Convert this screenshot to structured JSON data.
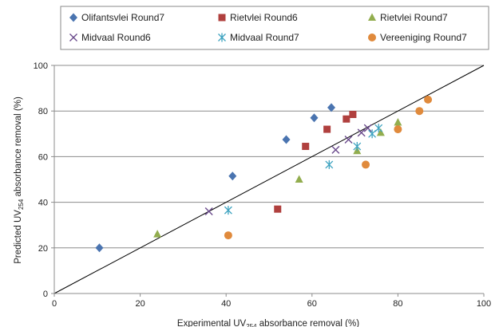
{
  "chart_data": {
    "type": "scatter",
    "title": "",
    "xlabel": {
      "prefix": "Experimental UV",
      "sub": "254",
      "suffix": " absorbance removal (%)"
    },
    "ylabel": {
      "prefix": "Predicted UV",
      "sub": "254",
      "suffix": " absorbance removal (%)"
    },
    "xlim": [
      0,
      100
    ],
    "ylim": [
      0,
      100
    ],
    "x_ticks": [
      "0",
      "20",
      "40",
      "60",
      "80",
      "100"
    ],
    "y_ticks": [
      "0",
      "20",
      "40",
      "60",
      "80",
      "100"
    ],
    "grid": "horizontal",
    "legend_position": "top",
    "reference_line": {
      "from": [
        0,
        0
      ],
      "to": [
        100,
        100
      ]
    },
    "series": [
      {
        "name": "Olifantsvlei Round7",
        "marker": "diamond",
        "color": "#4a74b0",
        "points": [
          [
            10.5,
            20
          ],
          [
            41.5,
            51.5
          ],
          [
            54,
            67.5
          ],
          [
            60.5,
            77
          ],
          [
            64.5,
            81.5
          ]
        ]
      },
      {
        "name": "Rietvlei Round6",
        "marker": "square",
        "color": "#b0403e",
        "points": [
          [
            52,
            37
          ],
          [
            58.5,
            64.5
          ],
          [
            63.5,
            72
          ],
          [
            68,
            76.5
          ],
          [
            69.5,
            78.5
          ]
        ]
      },
      {
        "name": "Rietvlei Round7",
        "marker": "triangle",
        "color": "#92ad4e",
        "points": [
          [
            24,
            26
          ],
          [
            57,
            50
          ],
          [
            70.5,
            62.5
          ],
          [
            76,
            70.5
          ],
          [
            80,
            75
          ]
        ]
      },
      {
        "name": "Midvaal Round6",
        "marker": "x",
        "color": "#6a4a8c",
        "points": [
          [
            36,
            36
          ],
          [
            65.5,
            63
          ],
          [
            68.5,
            67.5
          ],
          [
            71.5,
            70.5
          ],
          [
            73,
            72.5
          ]
        ]
      },
      {
        "name": "Midvaal Round7",
        "marker": "asterisk",
        "color": "#3ea3c0",
        "points": [
          [
            40.5,
            36.5
          ],
          [
            64,
            56.5
          ],
          [
            70.5,
            64.5
          ],
          [
            74,
            70
          ],
          [
            75.5,
            72.5
          ]
        ]
      },
      {
        "name": "Vereeniging Round7",
        "marker": "circle",
        "color": "#e08a3c",
        "points": [
          [
            40.5,
            25.5
          ],
          [
            72.5,
            56.5
          ],
          [
            80,
            72
          ],
          [
            85,
            80
          ],
          [
            87,
            85
          ]
        ]
      }
    ]
  }
}
